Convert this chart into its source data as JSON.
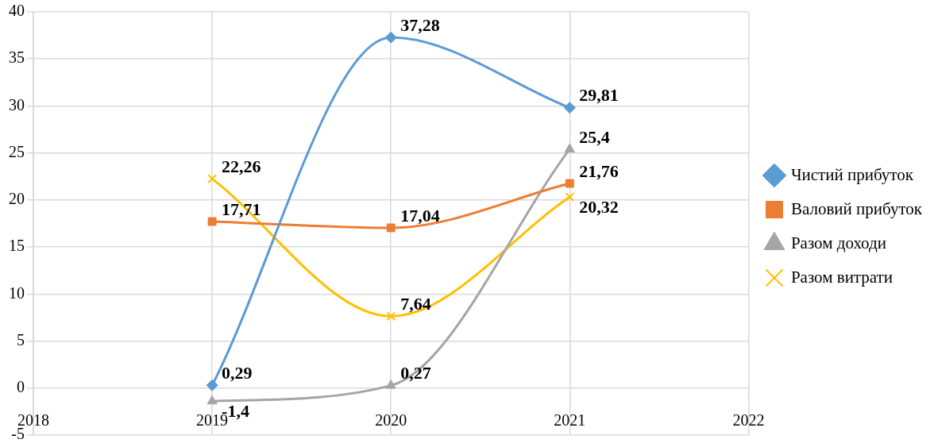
{
  "chart_data": {
    "type": "line",
    "x": [
      2019,
      2020,
      2021
    ],
    "series": [
      {
        "name": "Чистий прибуток",
        "color": "#5b9bd5",
        "marker": "diamond",
        "values": [
          0.29,
          37.28,
          29.81
        ],
        "value_labels": [
          "0,29",
          "37,28",
          "29,81"
        ]
      },
      {
        "name": "Валовий прибуток",
        "color": "#ed7d31",
        "marker": "square",
        "values": [
          17.71,
          17.04,
          21.76
        ],
        "value_labels": [
          "17,71",
          "17,04",
          "21,76"
        ]
      },
      {
        "name": "Разом доходи",
        "color": "#a5a5a5",
        "marker": "triangle",
        "values": [
          -1.4,
          0.27,
          25.4
        ],
        "value_labels": [
          "-1,4",
          "0,27",
          "25,4"
        ]
      },
      {
        "name": "Разом витрати",
        "color": "#ffc000",
        "marker": "cross",
        "values": [
          22.26,
          7.64,
          20.32
        ],
        "value_labels": [
          "22,26",
          "7,64",
          "20,32"
        ]
      }
    ],
    "xlim": [
      2018,
      2022
    ],
    "xticks": [
      2018,
      2019,
      2020,
      2021,
      2022
    ],
    "ylim": [
      -5,
      40
    ],
    "yticks": [
      -5,
      0,
      5,
      10,
      15,
      20,
      25,
      30,
      35,
      40
    ],
    "grid": true,
    "legend": "right"
  }
}
